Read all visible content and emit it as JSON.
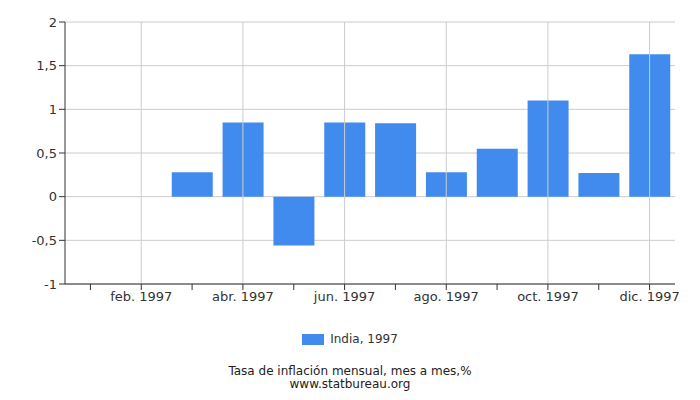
{
  "chart_data": {
    "type": "bar",
    "title": "Tasa de inflación mensual, mes a mes,%",
    "subtitle": "www.statbureau.org",
    "categories": [
      null,
      "feb. 1997",
      null,
      "abr. 1997",
      null,
      "jun. 1997",
      null,
      "ago. 1997",
      null,
      "oct. 1997",
      null,
      "dic. 1997"
    ],
    "series": [
      {
        "name": "India, 1997",
        "color": "#428bee",
        "values": [
          null,
          null,
          0.28,
          0.85,
          -0.56,
          0.85,
          0.84,
          0.28,
          0.55,
          1.1,
          0.27,
          1.63
        ]
      }
    ],
    "ylim": [
      -1,
      2
    ],
    "yticks": [
      -1,
      {
        "value": -0.5,
        "label": "-0,5"
      },
      0,
      {
        "value": 0.5,
        "label": "0,5"
      },
      1,
      {
        "value": 1.5,
        "label": "1,5"
      },
      2
    ],
    "grid": true,
    "legend": "bottom"
  }
}
